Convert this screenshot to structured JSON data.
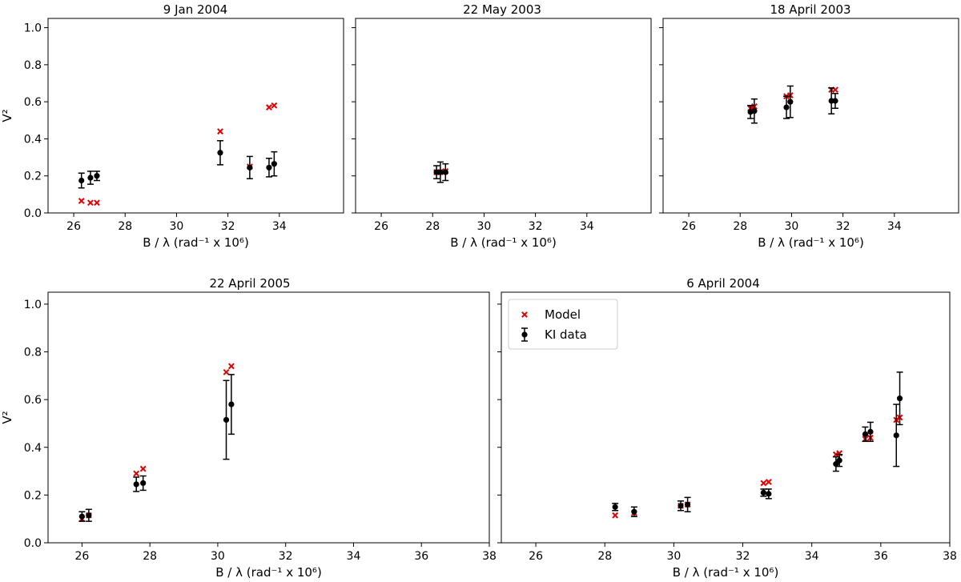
{
  "figure": {
    "model_color": "#e00000",
    "data_color": "#000000"
  },
  "chart_data": [
    {
      "type": "scatter",
      "title": "9 Jan 2004",
      "xlabel": "B / λ (rad⁻¹ x 10⁶)",
      "ylabel": "V²",
      "xlim": [
        25,
        36.5
      ],
      "ylim": [
        0,
        1.05
      ],
      "xticks": [
        "26",
        "28",
        "30",
        "32",
        "34"
      ],
      "yticks": [
        "0.0",
        "0.2",
        "0.4",
        "0.6",
        "0.8",
        "1.0"
      ],
      "series": [
        {
          "name": "Model",
          "marker": "x",
          "x": [
            26.3,
            26.65,
            26.9,
            31.7,
            32.85,
            33.6,
            33.8
          ],
          "y": [
            0.065,
            0.055,
            0.055,
            0.44,
            0.25,
            0.57,
            0.58
          ]
        },
        {
          "name": "KI data",
          "marker": "o",
          "x": [
            26.3,
            26.65,
            26.9,
            31.7,
            32.85,
            33.6,
            33.8
          ],
          "y": [
            0.175,
            0.19,
            0.2,
            0.325,
            0.245,
            0.245,
            0.265
          ],
          "yerr": [
            0.04,
            0.035,
            0.025,
            0.065,
            0.06,
            0.05,
            0.065
          ]
        }
      ]
    },
    {
      "type": "scatter",
      "title": "22 May 2003",
      "xlabel": "B / λ (rad⁻¹ x 10⁶)",
      "ylabel": "",
      "xlim": [
        25,
        36.5
      ],
      "ylim": [
        0,
        1.05
      ],
      "xticks": [
        "26",
        "28",
        "30",
        "32",
        "34"
      ],
      "yticks": [],
      "series": [
        {
          "name": "Model",
          "marker": "x",
          "x": [
            28.15,
            28.3,
            28.5
          ],
          "y": [
            0.22,
            0.22,
            0.225
          ]
        },
        {
          "name": "KI data",
          "marker": "o",
          "x": [
            28.15,
            28.3,
            28.5
          ],
          "y": [
            0.22,
            0.22,
            0.22
          ],
          "yerr": [
            0.035,
            0.055,
            0.045
          ]
        }
      ]
    },
    {
      "type": "scatter",
      "title": "18 April 2003",
      "xlabel": "B / λ (rad⁻¹ x 10⁶)",
      "ylabel": "",
      "xlim": [
        25,
        36.5
      ],
      "ylim": [
        0,
        1.05
      ],
      "xticks": [
        "26",
        "28",
        "30",
        "32",
        "34"
      ],
      "yticks": [],
      "series": [
        {
          "name": "Model",
          "marker": "x",
          "x": [
            28.4,
            28.55,
            29.8,
            29.95,
            31.55,
            31.7
          ],
          "y": [
            0.565,
            0.575,
            0.63,
            0.635,
            0.665,
            0.665
          ]
        },
        {
          "name": "KI data",
          "marker": "o",
          "x": [
            28.4,
            28.55,
            29.8,
            29.95,
            31.55,
            31.7
          ],
          "y": [
            0.545,
            0.55,
            0.57,
            0.6,
            0.605,
            0.605
          ],
          "yerr": [
            0.035,
            0.065,
            0.06,
            0.085,
            0.07,
            0.04
          ]
        }
      ]
    },
    {
      "type": "scatter",
      "title": "22 April 2005",
      "xlabel": "B / λ (rad⁻¹ x 10⁶)",
      "ylabel": "V²",
      "xlim": [
        25,
        38
      ],
      "ylim": [
        0,
        1.05
      ],
      "xticks": [
        "26",
        "28",
        "30",
        "32",
        "34",
        "36",
        "38"
      ],
      "yticks": [
        "0.0",
        "0.2",
        "0.4",
        "0.6",
        "0.8",
        "1.0"
      ],
      "series": [
        {
          "name": "Model",
          "marker": "x",
          "x": [
            26.0,
            26.2,
            27.6,
            27.8,
            30.25,
            30.4
          ],
          "y": [
            0.1,
            0.115,
            0.29,
            0.31,
            0.715,
            0.74
          ]
        },
        {
          "name": "KI data",
          "marker": "o",
          "x": [
            26.0,
            26.2,
            27.6,
            27.8,
            30.25,
            30.4
          ],
          "y": [
            0.11,
            0.115,
            0.245,
            0.25,
            0.515,
            0.58
          ],
          "yerr": [
            0.02,
            0.025,
            0.03,
            0.03,
            0.165,
            0.125
          ]
        }
      ]
    },
    {
      "type": "scatter",
      "title": "6 April 2004",
      "xlabel": "B / λ (rad⁻¹ x 10⁶)",
      "ylabel": "",
      "xlim": [
        25,
        38
      ],
      "ylim": [
        0,
        1.05
      ],
      "xticks": [
        "26",
        "28",
        "30",
        "32",
        "34",
        "36",
        "38"
      ],
      "yticks": [],
      "legend": {
        "placement": "upper-left",
        "entries": [
          "Model",
          "KI data"
        ]
      },
      "series": [
        {
          "name": "Model",
          "marker": "x",
          "x": [
            28.3,
            28.85,
            30.2,
            30.4,
            32.6,
            32.75,
            34.7,
            34.8,
            35.55,
            35.7,
            36.45,
            36.55
          ],
          "y": [
            0.115,
            0.125,
            0.155,
            0.16,
            0.25,
            0.255,
            0.37,
            0.375,
            0.435,
            0.44,
            0.515,
            0.525
          ]
        },
        {
          "name": "KI data",
          "marker": "o",
          "x": [
            28.3,
            28.85,
            30.2,
            30.4,
            32.6,
            32.75,
            34.7,
            34.8,
            35.55,
            35.7,
            36.45,
            36.55
          ],
          "y": [
            0.15,
            0.13,
            0.155,
            0.16,
            0.21,
            0.205,
            0.33,
            0.345,
            0.455,
            0.465,
            0.45,
            0.605
          ],
          "yerr": [
            0.015,
            0.02,
            0.02,
            0.03,
            0.015,
            0.02,
            0.03,
            0.025,
            0.03,
            0.04,
            0.13,
            0.11
          ]
        }
      ]
    }
  ]
}
